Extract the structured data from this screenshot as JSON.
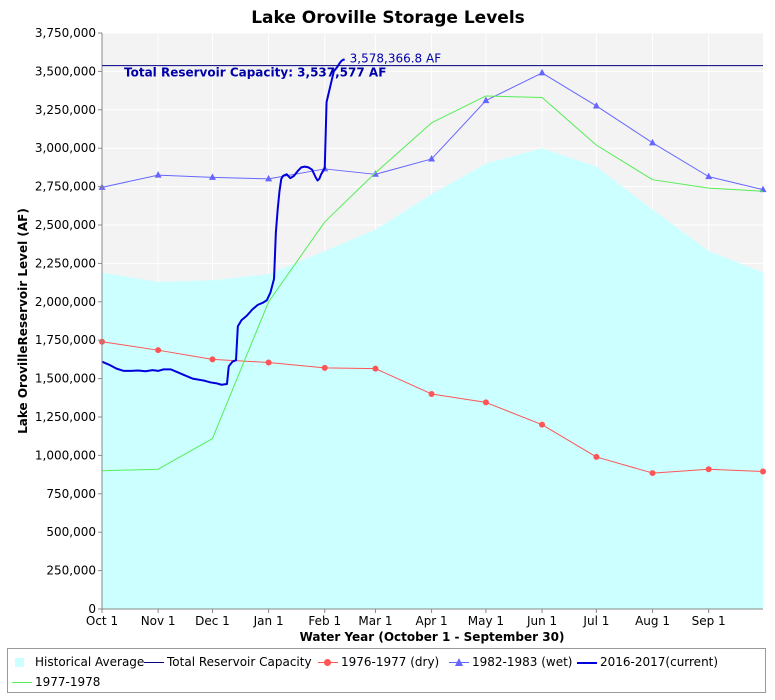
{
  "chart_data": {
    "type": "line",
    "title": "Lake Oroville Storage Levels",
    "xlabel": "Water Year (October 1 - September 30)",
    "ylabel": "Lake OrovilleReservoir Level (AF)",
    "ylim": [
      0,
      3750000
    ],
    "yticks": [
      0,
      250000,
      500000,
      750000,
      1000000,
      1250000,
      1500000,
      1750000,
      2000000,
      2250000,
      2500000,
      2750000,
      3000000,
      3250000,
      3500000,
      3750000
    ],
    "ytick_labels": [
      "0",
      "250,000",
      "500,000",
      "750,000",
      "1,000,000",
      "1,250,000",
      "1,500,000",
      "1,750,000",
      "2,000,000",
      "2,250,000",
      "2,500,000",
      "2,750,000",
      "3,000,000",
      "3,250,000",
      "3,500,000",
      "3,750,000"
    ],
    "xlim_days": [
      0,
      365
    ],
    "x_tick_days": [
      0,
      31,
      61,
      92,
      123,
      151,
      182,
      212,
      243,
      273,
      304,
      335
    ],
    "x_tick_labels": [
      "Oct 1",
      "Nov 1",
      "Dec 1",
      "Jan 1",
      "Feb 1",
      "Mar 1",
      "Apr 1",
      "May 1",
      "Jun 1",
      "Jul 1",
      "Aug 1",
      "Sep 1"
    ],
    "grid": true,
    "legend_placement": "bottom",
    "capacity": {
      "name": "Total Reservoir Capacity",
      "value": 3537577,
      "label": "Total Reservoir Capacity: 3,537,577 AF",
      "color": "#000080"
    },
    "current_annotation": "3,578,366.8 AF",
    "series": [
      {
        "name": "Historical Average",
        "kind": "area",
        "color": "#ccffff",
        "x": [
          0,
          31,
          61,
          92,
          123,
          151,
          182,
          212,
          243,
          273,
          304,
          335,
          365
        ],
        "y": [
          2190000,
          2130000,
          2140000,
          2180000,
          2330000,
          2470000,
          2700000,
          2900000,
          3000000,
          2880000,
          2600000,
          2330000,
          2190000
        ]
      },
      {
        "name": "1976-1977 (dry)",
        "kind": "line-dot",
        "color": "#ff5555",
        "x": [
          0,
          31,
          61,
          92,
          123,
          151,
          182,
          212,
          243,
          273,
          304,
          335,
          365
        ],
        "y": [
          1740000,
          1685000,
          1625000,
          1605000,
          1570000,
          1565000,
          1400000,
          1345000,
          1200000,
          990000,
          885000,
          910000,
          895000
        ]
      },
      {
        "name": "1982-1983 (wet)",
        "kind": "line-triangle",
        "color": "#6666ff",
        "x": [
          0,
          31,
          61,
          92,
          123,
          151,
          182,
          212,
          243,
          273,
          304,
          335,
          365
        ],
        "y": [
          2745000,
          2825000,
          2810000,
          2800000,
          2865000,
          2830000,
          2930000,
          3310000,
          3490000,
          3275000,
          3035000,
          2815000,
          2730000
        ]
      },
      {
        "name": "2016-2017(current)",
        "kind": "line",
        "color": "#0000dd",
        "x": [
          0,
          4,
          8,
          12,
          16,
          20,
          24,
          28,
          31,
          34,
          38,
          42,
          46,
          50,
          54,
          57,
          60,
          63,
          66,
          69,
          70,
          72,
          74,
          75,
          77,
          80,
          83,
          86,
          89,
          91,
          93,
          95,
          96,
          97,
          98,
          99,
          100,
          102,
          104,
          106,
          108,
          110,
          112,
          114,
          116,
          118,
          119,
          120,
          121,
          122,
          123,
          124,
          126,
          127,
          128,
          130,
          131,
          132,
          133,
          134
        ],
        "y": [
          1610000,
          1590000,
          1565000,
          1550000,
          1550000,
          1553000,
          1548000,
          1555000,
          1550000,
          1560000,
          1560000,
          1540000,
          1520000,
          1500000,
          1492000,
          1485000,
          1475000,
          1470000,
          1460000,
          1465000,
          1580000,
          1610000,
          1620000,
          1840000,
          1880000,
          1910000,
          1950000,
          1980000,
          1995000,
          2010000,
          2060000,
          2150000,
          2450000,
          2600000,
          2720000,
          2800000,
          2820000,
          2830000,
          2805000,
          2820000,
          2850000,
          2875000,
          2880000,
          2875000,
          2860000,
          2810000,
          2790000,
          2800000,
          2830000,
          2850000,
          2870000,
          3300000,
          3400000,
          3450000,
          3500000,
          3530000,
          3550000,
          3565000,
          3575000,
          3578367
        ]
      },
      {
        "name": "1977-1978",
        "kind": "line",
        "color": "#55ee55",
        "x": [
          0,
          31,
          61,
          92,
          123,
          151,
          182,
          212,
          243,
          273,
          304,
          335,
          365
        ],
        "y": [
          900000,
          910000,
          1110000,
          2000000,
          2520000,
          2840000,
          3165000,
          3340000,
          3330000,
          3020000,
          2795000,
          2740000,
          2720000
        ]
      }
    ]
  },
  "legend": {
    "items": [
      {
        "label": "Historical Average",
        "symbol": "square",
        "color": "#ccffff"
      },
      {
        "label": "Total Reservoir Capacity",
        "symbol": "line",
        "color": "#000080"
      },
      {
        "label": "1976-1977 (dry)",
        "symbol": "line-dot",
        "color": "#ff5555"
      },
      {
        "label": "1982-1983 (wet)",
        "symbol": "line-triangle",
        "color": "#6666ff"
      },
      {
        "label": "2016-2017(current)",
        "symbol": "line-thick",
        "color": "#0000dd"
      },
      {
        "label": "1977-1978",
        "symbol": "line",
        "color": "#55ee55"
      }
    ]
  }
}
